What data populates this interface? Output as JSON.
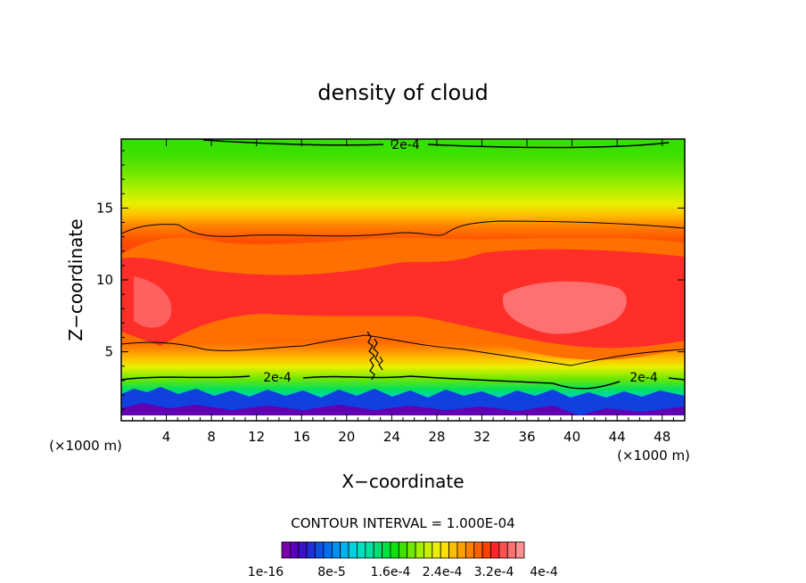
{
  "chart_data": {
    "type": "heatmap",
    "title": "density of cloud",
    "xlabel": "X−coordinate",
    "ylabel": "Z−coordinate",
    "x_units_left": "(×1000 m)",
    "x_units_right": "(×1000 m)",
    "xlim": [
      0,
      50
    ],
    "ylim": [
      0.2,
      19.8
    ],
    "x_ticks": [
      4,
      8,
      12,
      16,
      20,
      24,
      28,
      32,
      36,
      40,
      44,
      48
    ],
    "y_ticks": [
      5,
      10,
      15
    ],
    "contour_interval_text": "CONTOUR INTERVAL = 1.000E-04",
    "contour_labels": [
      {
        "text": "2e-4",
        "x": 25.5,
        "z": 19.5
      },
      {
        "text": "2e-4",
        "x": 13.8,
        "z": 3.3
      },
      {
        "text": "2e-4",
        "x": 46.2,
        "z": 3.3
      }
    ],
    "colorbar": {
      "labels": [
        "1e-16",
        "8e-5",
        "1.6e-4",
        "2.4e-4",
        "3.2e-4",
        "4e-4"
      ],
      "colors": [
        "#7a00a8",
        "#5a00b8",
        "#3a10c8",
        "#2030d8",
        "#1050e0",
        "#0070f0",
        "#0090f0",
        "#00b0f0",
        "#00d0e0",
        "#00e0c0",
        "#00e0a0",
        "#00e070",
        "#00e040",
        "#10e010",
        "#40e000",
        "#70e800",
        "#a0f000",
        "#c8f000",
        "#e8f000",
        "#ffe000",
        "#ffc000",
        "#ffa000",
        "#ff8000",
        "#ff6000",
        "#ff4000",
        "#ff2828",
        "#ff5050",
        "#ff7070",
        "#ff9090"
      ]
    }
  }
}
